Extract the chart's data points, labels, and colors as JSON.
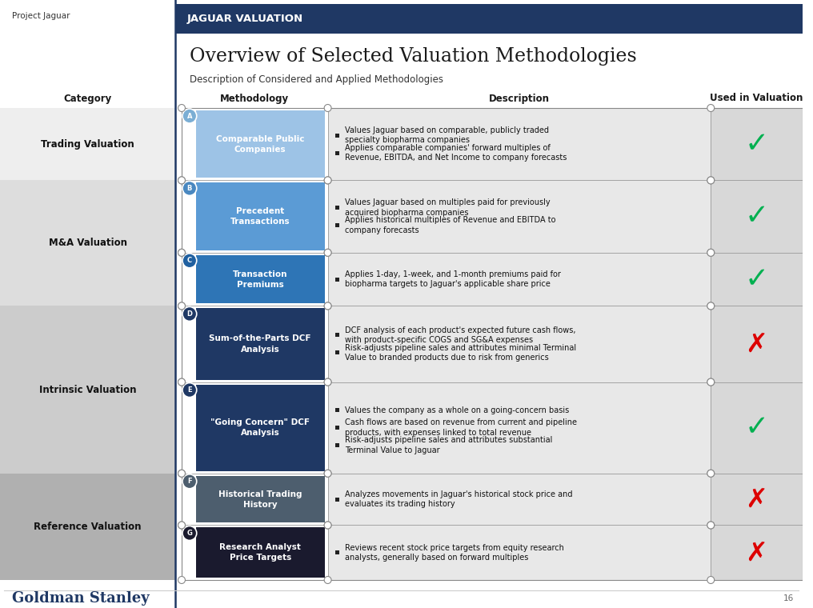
{
  "bg_color": "#ffffff",
  "header_bar_color": "#1f3864",
  "header_bar_text": "JAGUAR VALUATION",
  "header_bar_text_color": "#ffffff",
  "title": "Overview of Selected Valuation Methodologies",
  "subtitle": "Description of Considered and Applied Methodologies",
  "project_label": "Project Jaguar",
  "footer_label": "Goldman Stanley",
  "page_number": "16",
  "left_divider_color": "#1f3864",
  "col_headers": [
    "Category",
    "Methodology",
    "Description",
    "Used in Valuation"
  ],
  "rows": [
    {
      "letter": "A",
      "method": "Comparable Public\nCompanies",
      "method_bg": "#9dc3e6",
      "letter_bg": "#7baed4",
      "description": [
        "Values Jaguar based on comparable, publicly traded\nspecialty biopharma companies",
        "Applies comparable companies' forward multiples of\nRevenue, EBITDA, and Net Income to company forecasts"
      ],
      "used": true,
      "cat_idx": 0
    },
    {
      "letter": "B",
      "method": "Precedent\nTransactions",
      "method_bg": "#5b9bd5",
      "letter_bg": "#4a88c0",
      "description": [
        "Values Jaguar based on multiples paid for previously\nacquired biopharma companies",
        "Applies historical multiples of Revenue and EBITDA to\ncompany forecasts"
      ],
      "used": true,
      "cat_idx": 1
    },
    {
      "letter": "C",
      "method": "Transaction\nPremiums",
      "method_bg": "#2e75b6",
      "letter_bg": "#2060a0",
      "description": [
        "Applies 1-day, 1-week, and 1-month premiums paid for\nbiopharma targets to Jaguar's applicable share price"
      ],
      "used": true,
      "cat_idx": 1
    },
    {
      "letter": "D",
      "method": "Sum-of-the-Parts DCF\nAnalysis",
      "method_bg": "#1f3864",
      "letter_bg": "#1f3864",
      "description": [
        "DCF analysis of each product's expected future cash flows,\nwith product-specific COGS and SG&A expenses",
        "Risk-adjusts pipeline sales and attributes minimal Terminal\nValue to branded products due to risk from generics"
      ],
      "used": false,
      "cat_idx": 2
    },
    {
      "letter": "E",
      "method": "\"Going Concern\" DCF\nAnalysis",
      "method_bg": "#1f3864",
      "letter_bg": "#1f3864",
      "description": [
        "Values the company as a whole on a going-concern basis",
        "Cash flows are based on revenue from current and pipeline\nproducts, with expenses linked to total revenue",
        "Risk-adjusts pipeline sales and attributes substantial\nTerminal Value to Jaguar"
      ],
      "used": true,
      "cat_idx": 2
    },
    {
      "letter": "F",
      "method": "Historical Trading\nHistory",
      "method_bg": "#4d5e6e",
      "letter_bg": "#4d5e6e",
      "description": [
        "Analyzes movements in Jaguar's historical stock price and\nevaluates its trading history"
      ],
      "used": false,
      "cat_idx": 3
    },
    {
      "letter": "G",
      "method": "Research Analyst\nPrice Targets",
      "method_bg": "#1a1a2e",
      "letter_bg": "#1a1a2e",
      "description": [
        "Reviews recent stock price targets from equity research\nanalysts, generally based on forward multiples"
      ],
      "used": false,
      "cat_idx": 3
    }
  ],
  "categories": [
    {
      "label": "Trading Valuation",
      "bg": "#eeeeee",
      "rows": [
        0
      ]
    },
    {
      "label": "M&A Valuation",
      "bg": "#dddddd",
      "rows": [
        1,
        2
      ]
    },
    {
      "label": "Intrinsic Valuation",
      "bg": "#cccccc",
      "rows": [
        3,
        4
      ]
    },
    {
      "label": "Reference Valuation",
      "bg": "#b8b8b8",
      "rows": [
        5,
        6
      ]
    }
  ],
  "check_color": "#00b050",
  "cross_color": "#dd0000"
}
